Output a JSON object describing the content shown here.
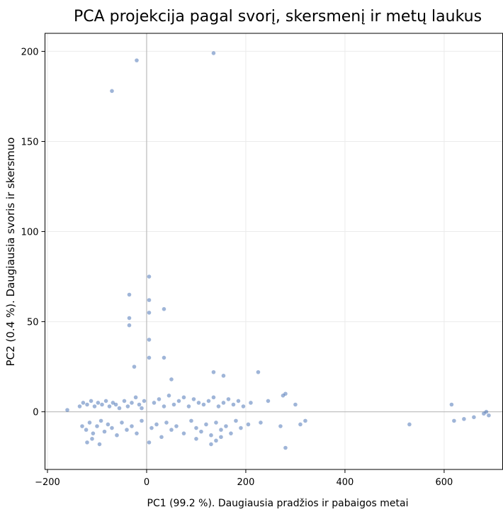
{
  "chart_data": {
    "type": "scatter",
    "title": "PCA projekcija pagal svorį, skersmenį ir metų laukus",
    "x_label": "PC1 (99.2 %). Daugiausia pradžios ir pabaigos metai",
    "y_label": "PC2 (0.4 %). Daugiausia svoris ir skersmuo",
    "xlim": [
      -205,
      718
    ],
    "ylim": [
      -32,
      210
    ],
    "xticks": [
      {
        "value": -200,
        "label": "−200"
      },
      0,
      200,
      400,
      600
    ],
    "yticks": [
      0,
      50,
      100,
      150,
      200
    ],
    "grid": true,
    "series": [
      {
        "color": "#2a5ca8",
        "x": [
          -160,
          -135,
          -128,
          -120,
          -112,
          -105,
          -98,
          -90,
          -82,
          -75,
          -68,
          -62,
          -55,
          -45,
          -38,
          -30,
          -22,
          -15,
          -5,
          15,
          25,
          35,
          45,
          55,
          65,
          75,
          85,
          95,
          105,
          115,
          125,
          135,
          145,
          155,
          165,
          175,
          185,
          195,
          210,
          245,
          275,
          300,
          -130,
          -122,
          -115,
          -108,
          -100,
          -92,
          -85,
          -78,
          -70,
          -60,
          -50,
          -40,
          -30,
          -20,
          -10,
          10,
          20,
          30,
          40,
          50,
          60,
          75,
          90,
          100,
          110,
          120,
          130,
          140,
          150,
          160,
          170,
          180,
          190,
          205,
          230,
          270,
          320,
          -70,
          -20,
          135,
          -35,
          -35,
          -35,
          5,
          5,
          5,
          35,
          5,
          5,
          35,
          135,
          155,
          225,
          280,
          280,
          310,
          530,
          615,
          620,
          640,
          660,
          680,
          690,
          685,
          -25,
          50,
          -120,
          -110,
          -95,
          140,
          150,
          130,
          5,
          -10,
          100
        ],
        "values": [
          1,
          3,
          5,
          4,
          6,
          3,
          5,
          4,
          6,
          3,
          5,
          4,
          2,
          6,
          3,
          5,
          8,
          4,
          6,
          5,
          7,
          3,
          9,
          4,
          6,
          8,
          3,
          7,
          5,
          4,
          6,
          8,
          3,
          5,
          7,
          4,
          6,
          3,
          5,
          6,
          9,
          4,
          -8,
          -10,
          -6,
          -12,
          -8,
          -5,
          -11,
          -7,
          -9,
          -13,
          -6,
          -10,
          -8,
          -12,
          -5,
          -9,
          -7,
          -14,
          -6,
          -10,
          -8,
          -12,
          -5,
          -9,
          -11,
          -7,
          -13,
          -6,
          -10,
          -8,
          -12,
          -5,
          -9,
          -7,
          -6,
          -8,
          -5,
          178,
          195,
          199,
          65,
          52,
          48,
          75,
          62,
          55,
          57,
          40,
          30,
          30,
          22,
          20,
          22,
          10,
          -20,
          -7,
          -7,
          4,
          -5,
          -4,
          -3,
          -1,
          -2,
          0,
          25,
          18,
          -17,
          -15,
          -18,
          -16,
          -14,
          -18,
          -17,
          2,
          -15
        ]
      }
    ]
  }
}
